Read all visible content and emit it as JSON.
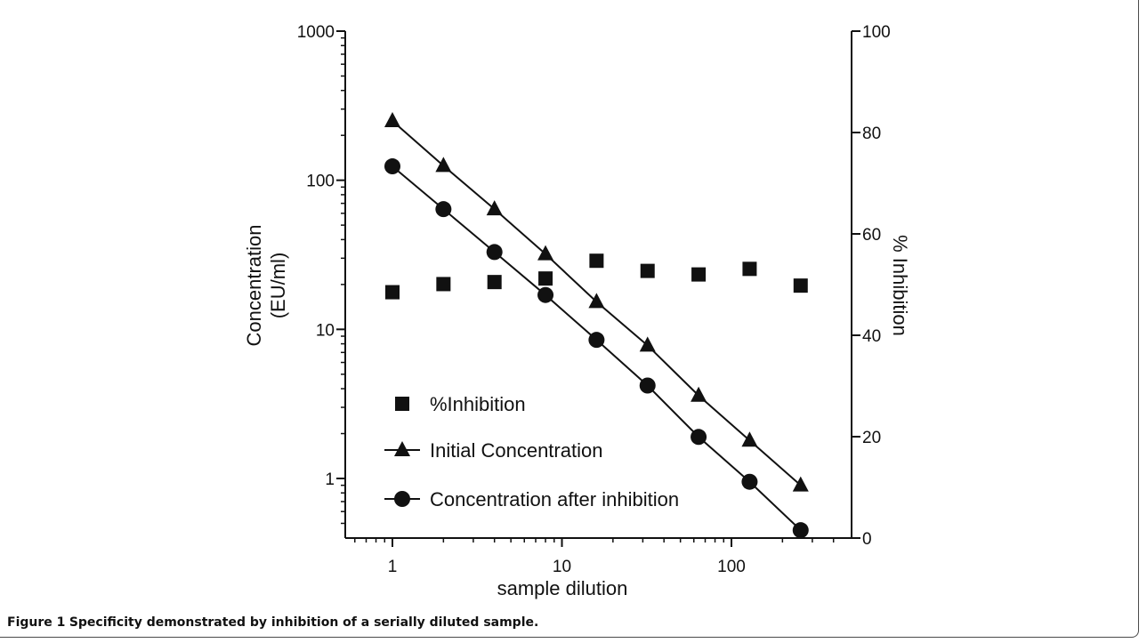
{
  "chart_data": {
    "type": "scatter",
    "x_axis": {
      "label": "sample dilution",
      "scale": "log",
      "range": [
        0.5,
        400
      ],
      "ticks": [
        1,
        10,
        100
      ],
      "tick_labels": [
        "1",
        "10",
        "100"
      ]
    },
    "y_axis_left": {
      "label_lines": [
        "Concentration",
        "(EU/ml)"
      ],
      "scale": "log",
      "range": [
        0.42,
        1000
      ],
      "ticks": [
        1,
        10,
        100,
        1000
      ],
      "tick_labels": [
        "1",
        "10",
        "100",
        "1000"
      ]
    },
    "y_axis_right": {
      "label": "% Inhibition",
      "scale": "linear",
      "range": [
        0,
        100
      ],
      "ticks": [
        0,
        20,
        40,
        60,
        80,
        100
      ],
      "tick_labels": [
        "0",
        "20",
        "40",
        "60",
        "80",
        "100"
      ]
    },
    "x": [
      1,
      2,
      4,
      8,
      16,
      32,
      64,
      128,
      256
    ],
    "series": [
      {
        "name": "%Inhibition",
        "axis": "right",
        "marker": "square",
        "connected": false,
        "values": [
          48.5,
          50.1,
          50.5,
          51.2,
          54.7,
          52.7,
          52.0,
          53.1,
          49.8
        ]
      },
      {
        "name": "Initial Concentration",
        "axis": "left",
        "marker": "triangle",
        "connected": true,
        "values": [
          250,
          125,
          64,
          32,
          15.3,
          7.8,
          3.6,
          1.8,
          0.9
        ]
      },
      {
        "name": "Concentration after inhibition",
        "axis": "left",
        "marker": "circle",
        "connected": true,
        "values": [
          124,
          64,
          33,
          17,
          8.5,
          4.2,
          1.9,
          0.95,
          0.45
        ]
      }
    ],
    "legend_position": "bottom-left inside plot",
    "grid": false,
    "colors": {
      "marker": "#111111",
      "axis": "#111111"
    }
  },
  "caption": {
    "label": "Figure 1",
    "text": "Specificity demonstrated by inhibition of a serially diluted sample."
  }
}
